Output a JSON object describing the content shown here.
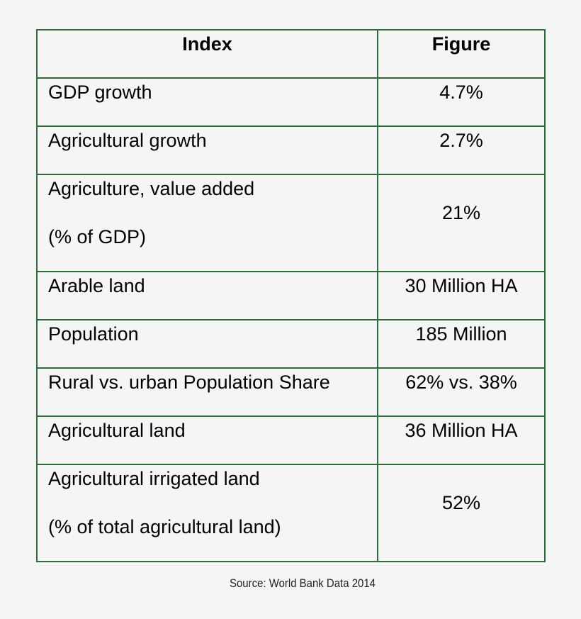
{
  "table": {
    "headers": {
      "index": "Index",
      "figure": "Figure"
    },
    "rows": [
      {
        "index": "GDP growth",
        "index_line2": "",
        "figure": "4.7%"
      },
      {
        "index": "Agricultural growth",
        "index_line2": "",
        "figure": "2.7%"
      },
      {
        "index": "Agriculture, value added",
        "index_line2": "(% of GDP)",
        "figure": "21%"
      },
      {
        "index": "Arable land",
        "index_line2": "",
        "figure": "30 Million HA"
      },
      {
        "index": "Population",
        "index_line2": "",
        "figure": "185 Million"
      },
      {
        "index": "Rural vs. urban Population Share",
        "index_line2": "",
        "figure": "62% vs. 38%"
      },
      {
        "index": "Agricultural land",
        "index_line2": "",
        "figure": "36 Million HA"
      },
      {
        "index": "Agricultural irrigated land",
        "index_line2": "(% of total agricultural land)",
        "figure": "52%"
      }
    ],
    "border_color": "#2e6b3a"
  },
  "source": "Source: World Bank Data 2014",
  "colors": {
    "background": "#f5f5f5",
    "border": "#2e6b3a",
    "text": "#000000"
  }
}
